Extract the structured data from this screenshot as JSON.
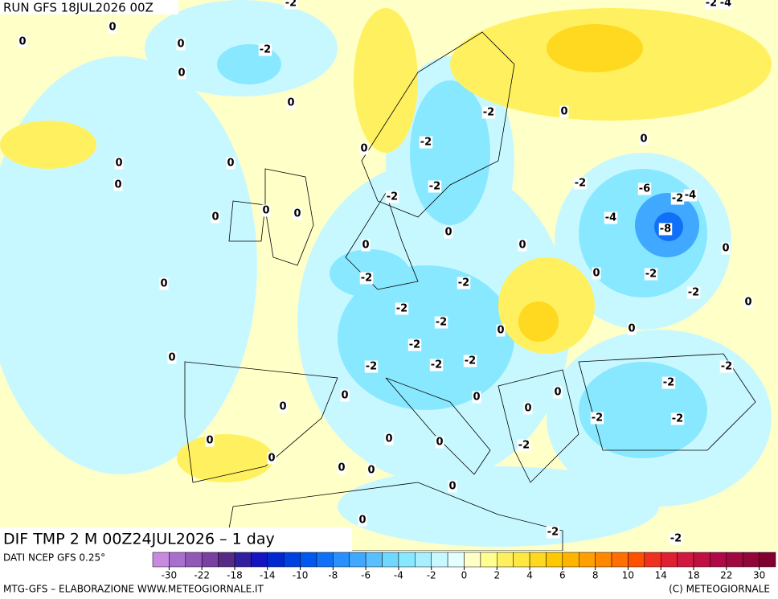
{
  "header": {
    "run": "RUN GFS 18JUL2026 00Z"
  },
  "map": {
    "title": "DIF TMP 2 M 00Z24JUL2026 – 1 day",
    "contour_labels": [
      -2,
      -2,
      -4,
      0,
      0,
      0,
      -2,
      0,
      0,
      -2,
      0,
      -2,
      0,
      0,
      0,
      0,
      -2,
      -2,
      -2,
      -6,
      -2,
      -4,
      0,
      0,
      0,
      -4,
      -8,
      0,
      0,
      0,
      0,
      -2,
      -2,
      0,
      -2,
      0,
      -2,
      0,
      -2,
      -2,
      0,
      0,
      -2,
      0,
      -2,
      -2,
      -2,
      -2,
      -2,
      0,
      0,
      0,
      0,
      0,
      -2,
      -2,
      0,
      0,
      0,
      -2,
      0,
      0,
      0,
      0,
      0,
      -2,
      -2,
      0
    ]
  },
  "legend": {
    "source": "DATI NCEP GFS 0.25°",
    "colors": [
      "#c88ae0",
      "#a870cc",
      "#9058b8",
      "#7840a0",
      "#582a88",
      "#3020a0",
      "#1414c0",
      "#0028d0",
      "#0040e0",
      "#0058f0",
      "#1070f8",
      "#2890ff",
      "#40a8ff",
      "#58c0ff",
      "#70d8ff",
      "#88e8ff",
      "#a8f0ff",
      "#c8f8ff",
      "#e4ffff",
      "#ffffc8",
      "#ffff90",
      "#fff060",
      "#ffe840",
      "#ffd820",
      "#ffc800",
      "#ffb400",
      "#ffa000",
      "#ff8800",
      "#ff7000",
      "#ff5000",
      "#f03020",
      "#e02030",
      "#d01840",
      "#c01040",
      "#b00848",
      "#a00840",
      "#900838",
      "#800030"
    ],
    "ticks": [
      -30,
      -22,
      -18,
      -14,
      -10,
      -8,
      -6,
      -4,
      -2,
      0,
      2,
      4,
      6,
      8,
      10,
      14,
      18,
      22,
      30
    ]
  },
  "footer": {
    "left": "MTG-GFS – ELABORAZIONE WWW.METEOGIORNALE.IT",
    "right": "(C) METEOGIORNALE"
  }
}
